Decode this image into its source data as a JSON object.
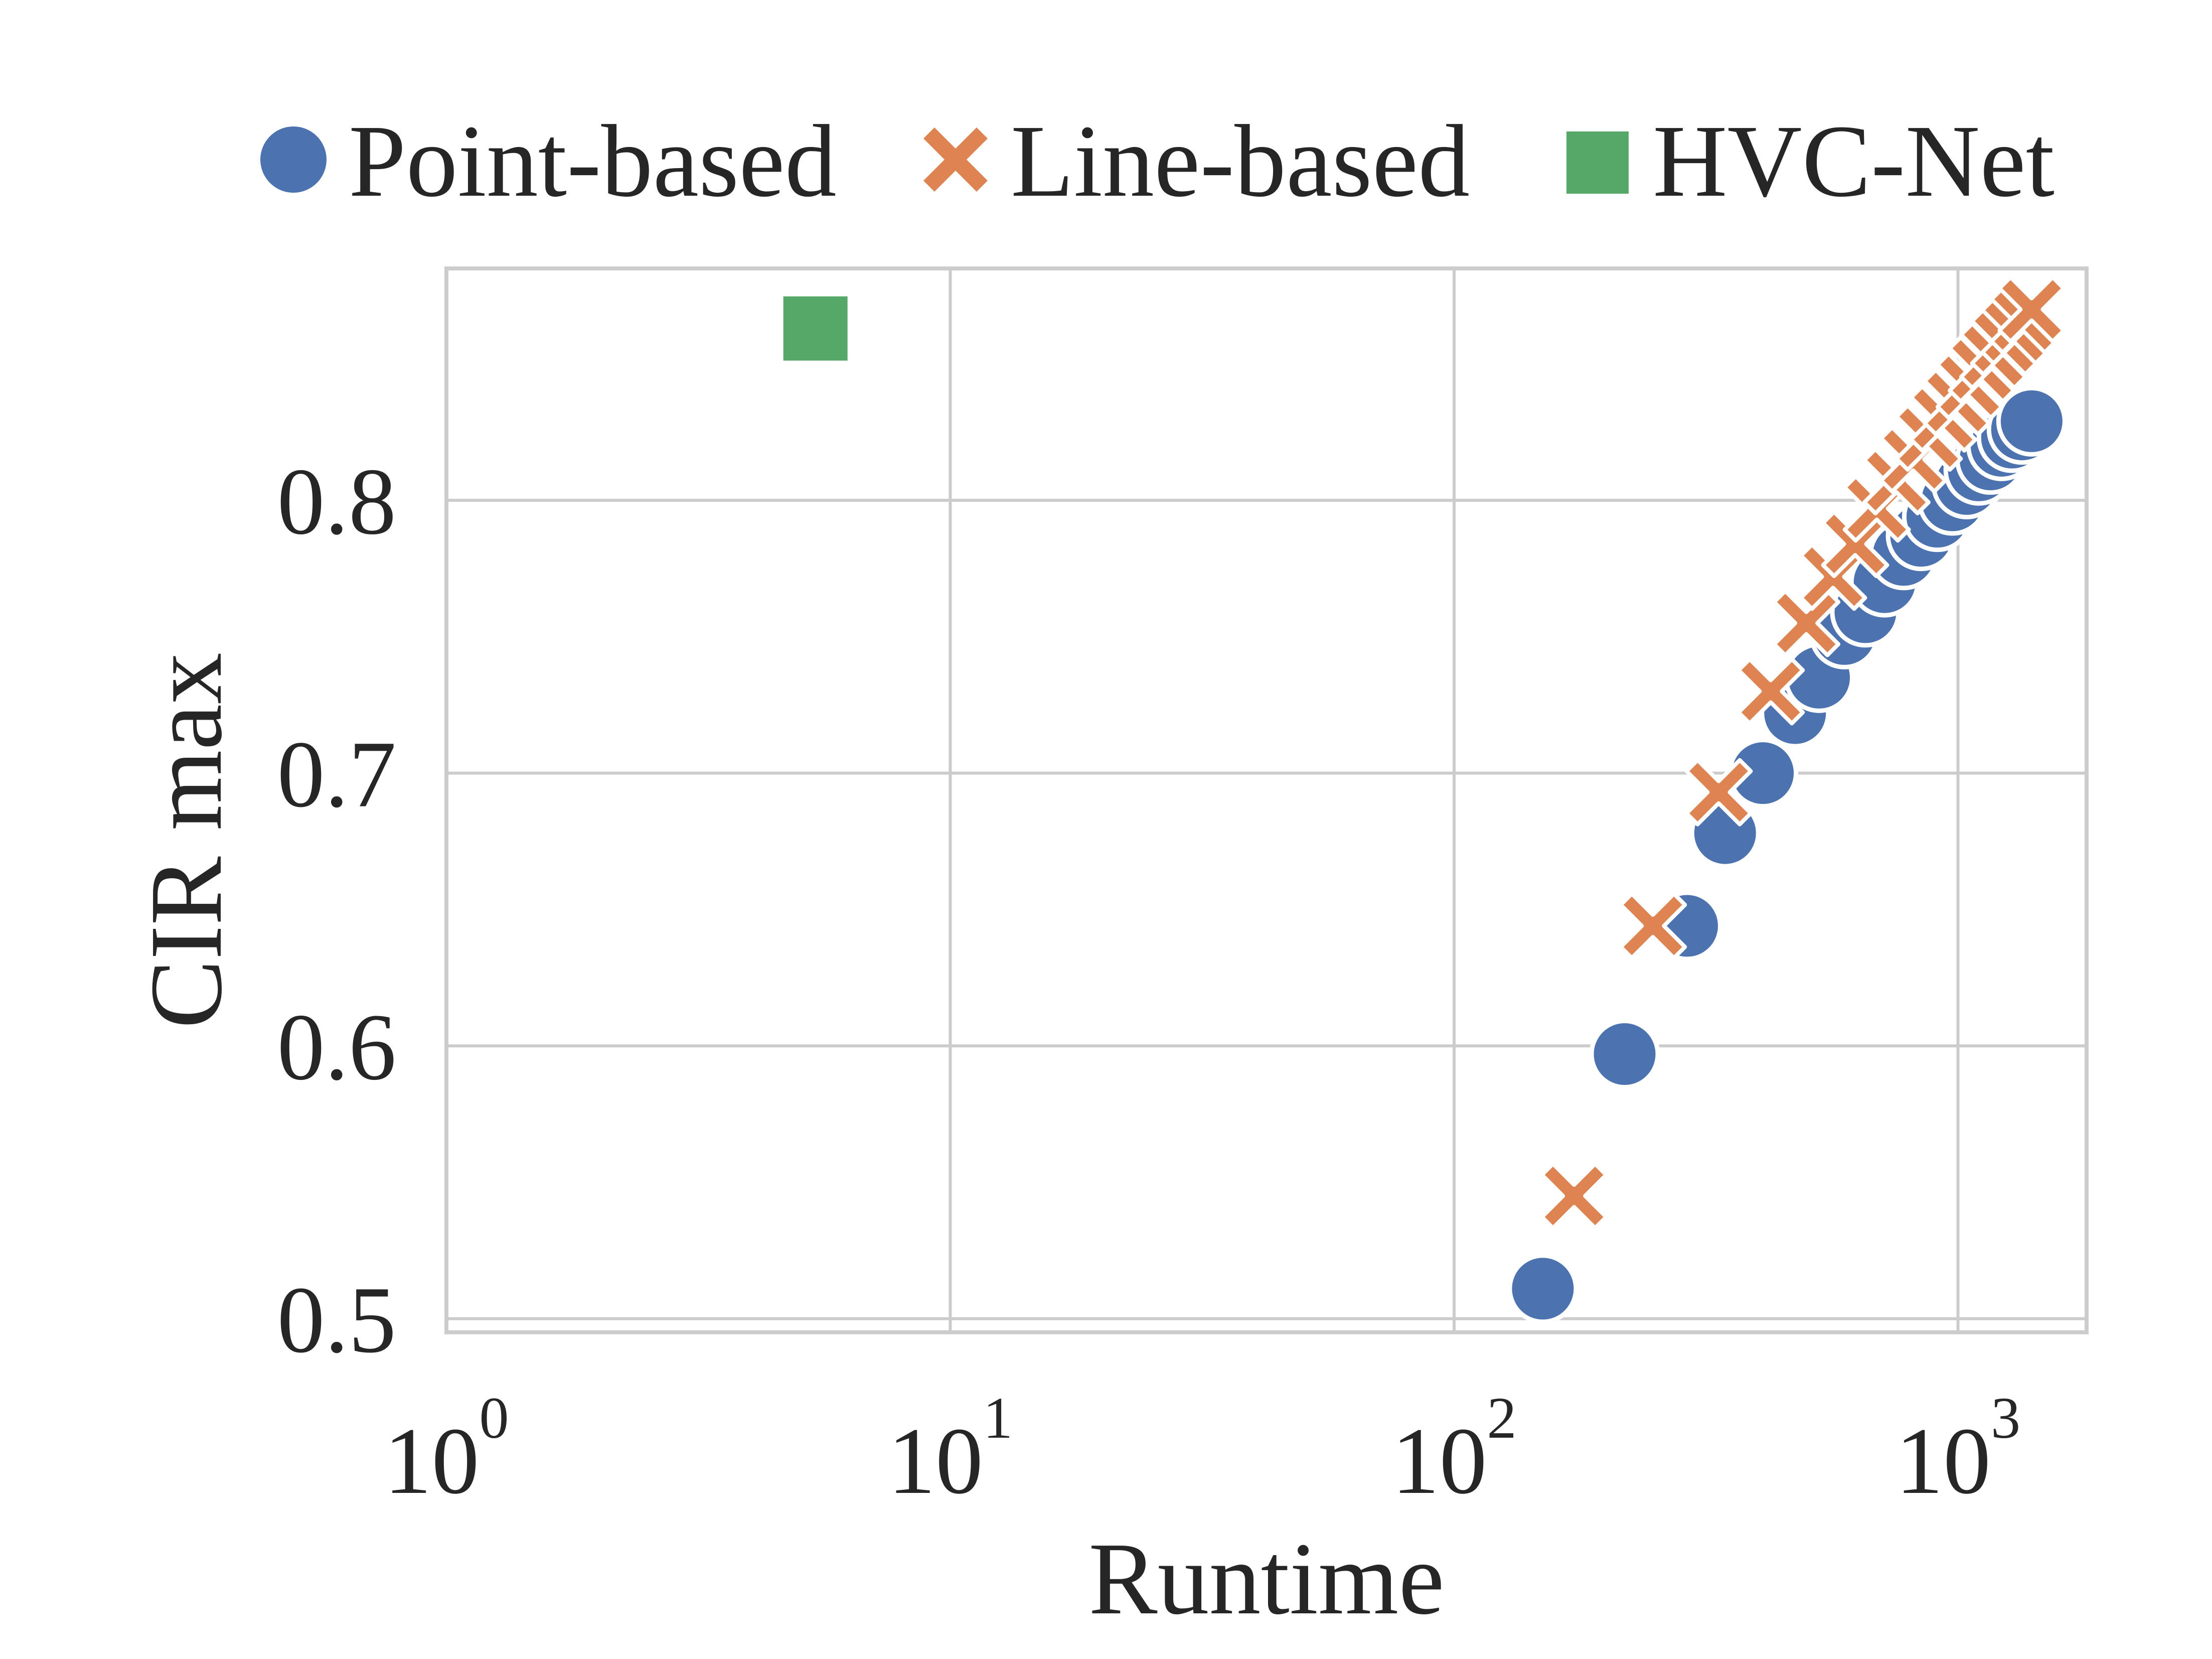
{
  "chart_data": {
    "type": "scatter",
    "xscale": "log",
    "xlim": [
      1,
      1800
    ],
    "ylim": [
      0.495,
      0.885
    ],
    "xlabel": "Runtime",
    "ylabel": "CIR max",
    "xticks": [
      {
        "base": "10",
        "exp": "0",
        "value": 1
      },
      {
        "base": "10",
        "exp": "1",
        "value": 10
      },
      {
        "base": "10",
        "exp": "2",
        "value": 100
      },
      {
        "base": "10",
        "exp": "3",
        "value": 1000
      }
    ],
    "yticks": [
      {
        "label": "0.5",
        "value": 0.5
      },
      {
        "label": "0.6",
        "value": 0.6
      },
      {
        "label": "0.7",
        "value": 0.7
      },
      {
        "label": "0.8",
        "value": 0.8
      }
    ],
    "grid": true,
    "legend_position": "top",
    "series": [
      {
        "name": "Point-based",
        "marker": "circle",
        "color": "#4C72B0",
        "points": [
          [
            150,
            0.511
          ],
          [
            218,
            0.597
          ],
          [
            290,
            0.644
          ],
          [
            345,
            0.678
          ],
          [
            410,
            0.7
          ],
          [
            475,
            0.722
          ],
          [
            530,
            0.735
          ],
          [
            595,
            0.751
          ],
          [
            655,
            0.759
          ],
          [
            715,
            0.77
          ],
          [
            780,
            0.78
          ],
          [
            845,
            0.787
          ],
          [
            910,
            0.794
          ],
          [
            975,
            0.8
          ],
          [
            1040,
            0.806
          ],
          [
            1100,
            0.811
          ],
          [
            1160,
            0.815
          ],
          [
            1220,
            0.82
          ],
          [
            1280,
            0.823
          ],
          [
            1340,
            0.826
          ],
          [
            1400,
            0.829
          ]
        ]
      },
      {
        "name": "Line-based",
        "marker": "x",
        "color": "#DD8452",
        "points": [
          [
            173,
            0.545
          ],
          [
            248,
            0.644
          ],
          [
            335,
            0.693
          ],
          [
            425,
            0.73
          ],
          [
            500,
            0.755
          ],
          [
            565,
            0.772
          ],
          [
            625,
            0.784
          ],
          [
            690,
            0.797
          ],
          [
            755,
            0.807
          ],
          [
            815,
            0.815
          ],
          [
            875,
            0.823
          ],
          [
            935,
            0.83
          ],
          [
            995,
            0.836
          ],
          [
            1055,
            0.842
          ],
          [
            1115,
            0.848
          ],
          [
            1175,
            0.853
          ],
          [
            1235,
            0.858
          ],
          [
            1295,
            0.862
          ],
          [
            1350,
            0.866
          ],
          [
            1400,
            0.87
          ]
        ]
      },
      {
        "name": "HVC-Net",
        "marker": "square",
        "color": "#55A868",
        "points": [
          [
            5.4,
            0.863
          ]
        ]
      }
    ]
  }
}
